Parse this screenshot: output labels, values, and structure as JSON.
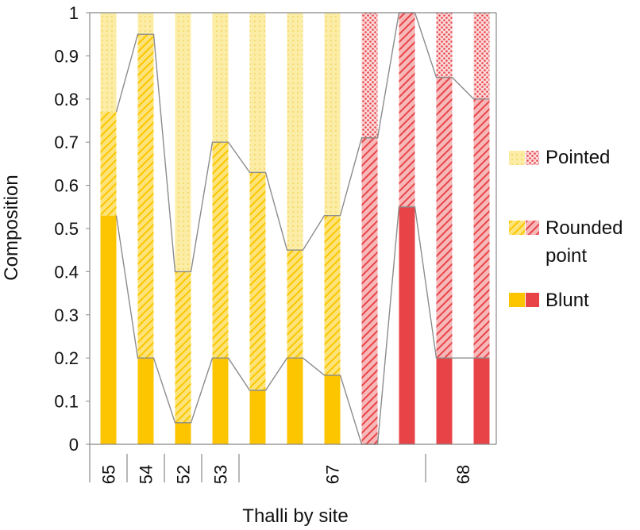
{
  "chart_data": {
    "type": "bar",
    "stacked": true,
    "title": "",
    "xlabel": "Thalli by site",
    "ylabel": "Composition",
    "ylim": [
      0,
      1
    ],
    "yticks": [
      "0",
      "0.1",
      "0.2",
      "0.3",
      "0.4",
      "0.5",
      "0.6",
      "0.7",
      "0.8",
      "0.9",
      "1"
    ],
    "grid": false,
    "legend_position": "right",
    "series": [
      {
        "name": "Blunt",
        "values": [
          0.53,
          0.2,
          0.05,
          0.2,
          0.125,
          0.2,
          0.16,
          0.0,
          0.55,
          0.2,
          0.2
        ]
      },
      {
        "name": "Rounded point",
        "values": [
          0.24,
          0.75,
          0.35,
          0.5,
          0.505,
          0.25,
          0.37,
          0.71,
          0.45,
          0.65,
          0.6
        ]
      },
      {
        "name": "Pointed",
        "values": [
          0.23,
          0.05,
          0.6,
          0.3,
          0.37,
          0.55,
          0.47,
          0.29,
          0.0,
          0.15,
          0.2
        ]
      }
    ],
    "bar_groups": [
      "yellow",
      "yellow",
      "yellow",
      "yellow",
      "yellow",
      "yellow",
      "yellow",
      "red",
      "red",
      "red",
      "red"
    ],
    "sites": [
      {
        "label": "65",
        "bars": 1
      },
      {
        "label": "54",
        "bars": 1
      },
      {
        "label": "52",
        "bars": 1
      },
      {
        "label": "53",
        "bars": 1
      },
      {
        "label": "67",
        "bars": 5
      },
      {
        "label": "68",
        "bars": 2
      }
    ],
    "colors": {
      "yellow_solid": "#FDC500",
      "yellow_light": "#FCEB9A",
      "red_solid": "#E84448",
      "red_light": "#F3A3A5",
      "connector": "#8C8C8C",
      "axis": "#888888"
    }
  },
  "legend": {
    "pointed": "Pointed",
    "rounded_line1": "Rounded",
    "rounded_line2": "point",
    "blunt": "Blunt"
  }
}
